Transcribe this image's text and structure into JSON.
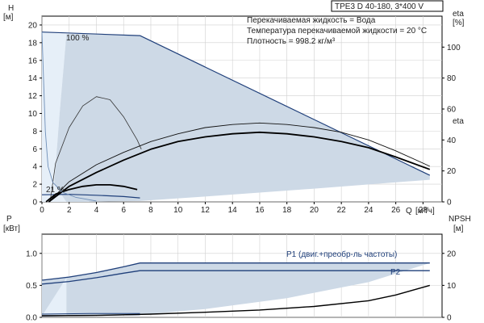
{
  "header": {
    "model": "TPE3 D 40-180, 3*400 V",
    "info_lines": [
      "Перекачиваемая жидкость = Вода",
      "Температура перекачиваемой жидкости = 20 °C",
      "Плотность = 998.2 кг/м³"
    ]
  },
  "chart_data": [
    {
      "type": "line",
      "name": "H-Q performance",
      "ylabel": "H",
      "yunit": "[м]",
      "y2label": "eta",
      "y2unit": "[%]",
      "xlabel": "Q",
      "xunit": "[м³/ч]",
      "xlim": [
        0,
        29.4
      ],
      "ylim": [
        0,
        21
      ],
      "y2lim": [
        0,
        120
      ],
      "x_ticks": [
        0,
        2,
        4,
        6,
        8,
        10,
        12,
        14,
        16,
        18,
        20,
        22,
        24,
        26,
        28
      ],
      "y_ticks": [
        0,
        2,
        4,
        6,
        8,
        10,
        12,
        14,
        16,
        18,
        20
      ],
      "y2_ticks": [
        0,
        20,
        40,
        60,
        80,
        100
      ],
      "grid": true,
      "annotations": [
        {
          "text": "100 %",
          "x": 2.0,
          "y": 19.4
        },
        {
          "text": "21 %",
          "x": 0.5,
          "y": 1.0
        }
      ],
      "region": {
        "upper": [
          [
            1.8,
            19.0
          ],
          [
            7.2,
            18.8
          ],
          [
            28.5,
            3.0
          ]
        ],
        "lower": [
          [
            28.5,
            2.5
          ],
          [
            20,
            1.5
          ],
          [
            12,
            0.6
          ],
          [
            7.2,
            0.1
          ],
          [
            3,
            0.0
          ],
          [
            1.8,
            0.0
          ],
          [
            0.9,
            2.0
          ],
          [
            1.3,
            10.0
          ],
          [
            1.8,
            19.0
          ]
        ]
      },
      "envelope_left": [
        [
          0,
          19.2
        ],
        [
          0.25,
          8
        ],
        [
          0.45,
          4
        ],
        [
          0.8,
          2.2
        ],
        [
          1.5,
          1.1
        ],
        [
          2.5,
          0.5
        ],
        [
          4,
          0.1
        ]
      ],
      "series": [
        {
          "role": "h100",
          "values": [
            [
              0,
              19.2
            ],
            [
              7.2,
              18.8
            ],
            [
              28.5,
              3.0
            ]
          ]
        },
        {
          "role": "h21",
          "values": [
            [
              0,
              0.8
            ],
            [
              2,
              0.85
            ],
            [
              4,
              0.75
            ],
            [
              6,
              0.6
            ],
            [
              7.2,
              0.45
            ]
          ]
        },
        {
          "role": "eta21_thin",
          "y_axis": "right",
          "values": [
            [
              0.6,
              0
            ],
            [
              1,
              25
            ],
            [
              2,
              48
            ],
            [
              3,
              62
            ],
            [
              4,
              68
            ],
            [
              5,
              66
            ],
            [
              6,
              55
            ],
            [
              7,
              40
            ],
            [
              7.3,
              34
            ]
          ]
        },
        {
          "role": "eta_thin",
          "y_axis": "right",
          "values": [
            [
              0.5,
              0
            ],
            [
              2,
              13
            ],
            [
              4,
              24
            ],
            [
              6,
              32
            ],
            [
              8,
              39
            ],
            [
              10,
              44
            ],
            [
              12,
              48
            ],
            [
              14,
              50
            ],
            [
              16,
              51
            ],
            [
              18,
              50
            ],
            [
              20,
              48
            ],
            [
              22,
              45
            ],
            [
              24,
              40
            ],
            [
              26,
              33
            ],
            [
              28.5,
              23
            ]
          ]
        },
        {
          "role": "eta_thick",
          "y_axis": "right",
          "values": [
            [
              0.5,
              0
            ],
            [
              2,
              10
            ],
            [
              4,
              19
            ],
            [
              6,
              27
            ],
            [
              8,
              34
            ],
            [
              10,
              39
            ],
            [
              12,
              42
            ],
            [
              14,
              44
            ],
            [
              16,
              45
            ],
            [
              18,
              44
            ],
            [
              20,
              42
            ],
            [
              22,
              39
            ],
            [
              24,
              35
            ],
            [
              26,
              29
            ],
            [
              28.5,
              21
            ]
          ]
        },
        {
          "role": "eta21_thick",
          "y_axis": "right",
          "values": [
            [
              0.3,
              0
            ],
            [
              1,
              5
            ],
            [
              2,
              8
            ],
            [
              3,
              10
            ],
            [
              4,
              11
            ],
            [
              5,
              11
            ],
            [
              6,
              10
            ],
            [
              7,
              8
            ]
          ]
        }
      ]
    },
    {
      "type": "line",
      "name": "Power and NPSH",
      "ylabel": "P",
      "yunit": "[кВт]",
      "y2label": "NPSH",
      "y2unit": "[м]",
      "xlim": [
        0,
        29.4
      ],
      "ylim": [
        0,
        1.3
      ],
      "y2lim": [
        0,
        26
      ],
      "y_ticks": [
        0.0,
        0.5,
        1.0
      ],
      "y_tick_labels": [
        "0.0",
        "0.5",
        "1.0"
      ],
      "y2_ticks": [
        0,
        10,
        20
      ],
      "grid": true,
      "region": {
        "upper": [
          [
            0,
            0.58
          ],
          [
            4,
            0.7
          ],
          [
            7.2,
            0.85
          ],
          [
            28.5,
            0.85
          ]
        ],
        "lower": [
          [
            28.5,
            0.85
          ],
          [
            24,
            0.55
          ],
          [
            18,
            0.3
          ],
          [
            12,
            0.13
          ],
          [
            7.2,
            0.04
          ],
          [
            0,
            0.02
          ]
        ]
      },
      "series": [
        {
          "name": "P1 (двиг.+преобр-ль частоты)",
          "values": [
            [
              0,
              0.58
            ],
            [
              2,
              0.63
            ],
            [
              4,
              0.7
            ],
            [
              6,
              0.79
            ],
            [
              7.2,
              0.85
            ],
            [
              28.5,
              0.85
            ]
          ]
        },
        {
          "name": "P2",
          "values": [
            [
              0,
              0.52
            ],
            [
              2,
              0.56
            ],
            [
              4,
              0.62
            ],
            [
              6,
              0.69
            ],
            [
              7.2,
              0.73
            ],
            [
              28.5,
              0.73
            ]
          ]
        },
        {
          "role": "p21_low",
          "values": [
            [
              0,
              0.02
            ],
            [
              3.5,
              0.03
            ],
            [
              7.2,
              0.04
            ]
          ]
        },
        {
          "role": "npsh",
          "y_axis": "right",
          "values": [
            [
              0,
              0.5
            ],
            [
              4,
              0.6
            ],
            [
              8,
              1.0
            ],
            [
              12,
              1.6
            ],
            [
              16,
              2.3
            ],
            [
              20,
              3.4
            ],
            [
              24,
              5.2
            ],
            [
              26,
              7.0
            ],
            [
              28.5,
              10.0
            ]
          ]
        }
      ]
    }
  ]
}
